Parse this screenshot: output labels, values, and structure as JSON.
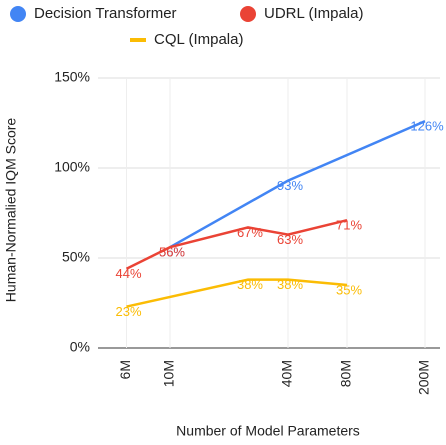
{
  "chart_data": {
    "type": "line",
    "xlabel": "Number of Model Parameters",
    "ylabel": "Human-Normalied IQM Score",
    "xscale": "log",
    "xlim": [
      4,
      250
    ],
    "xticks": [
      {
        "value": 6,
        "label": "6M"
      },
      {
        "value": 10,
        "label": "10M"
      },
      {
        "value": 40,
        "label": "40M"
      },
      {
        "value": 80,
        "label": "80M"
      },
      {
        "value": 200,
        "label": "200M"
      }
    ],
    "ylim": [
      0,
      150
    ],
    "yticks": [
      {
        "value": 0,
        "label": "0%"
      },
      {
        "value": 50,
        "label": "50%"
      },
      {
        "value": 100,
        "label": "100%"
      },
      {
        "value": 150,
        "label": "150%"
      }
    ],
    "grid": true,
    "legend": "top",
    "series": [
      {
        "name": "Decision Transformer",
        "color": "#4285f4",
        "x": [
          10,
          40,
          200
        ],
        "values": [
          56,
          93,
          126
        ],
        "value_labels": [
          "56%",
          "93%",
          "126%"
        ]
      },
      {
        "name": "UDRL (Impala)",
        "color": "#ea4335",
        "x": [
          6,
          10,
          25,
          40,
          80
        ],
        "values": [
          44,
          56,
          67,
          63,
          71
        ],
        "value_labels": [
          "44%",
          "56%",
          "67%",
          "63%",
          "71%"
        ]
      },
      {
        "name": "CQL (Impala)",
        "color": "#fbbc04",
        "x": [
          6,
          25,
          40,
          80
        ],
        "values": [
          23,
          38,
          38,
          35
        ],
        "value_labels": [
          "23%",
          "38%",
          "38%",
          "35%"
        ]
      }
    ]
  }
}
